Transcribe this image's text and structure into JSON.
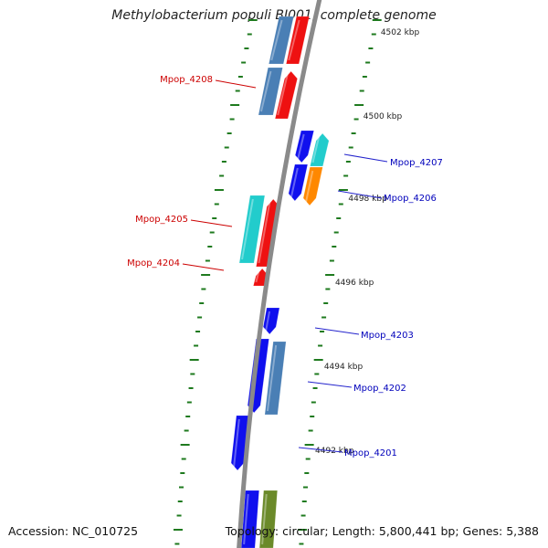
{
  "title": "Methylobacterium populi BJ001, complete genome",
  "accession_text": "Accession: NC_010725",
  "topology_text": "Topology: circular; Length: 5,800,441 bp; Genes: 5,388",
  "colors": {
    "backbone": "#8a8a8a",
    "tick": "#1e7a1e",
    "label_forward": "#cc0000",
    "label_reverse": "#0000bb",
    "leader_forward": "#cc0000",
    "leader_reverse": "#2222cc"
  },
  "ruler": [
    {
      "label": "4502 kbp",
      "kbp": 4502
    },
    {
      "label": "4500 kbp",
      "kbp": 4500
    },
    {
      "label": "4498 kbp",
      "kbp": 4498
    },
    {
      "label": "4496 kbp",
      "kbp": 4496
    },
    {
      "label": "4494 kbp",
      "kbp": 4494
    },
    {
      "label": "4492 kbp",
      "kbp": 4492
    }
  ],
  "gene_labels": [
    {
      "name": "Mpop_4208",
      "strand": "forward"
    },
    {
      "name": "Mpop_4207",
      "strand": "reverse"
    },
    {
      "name": "Mpop_4206",
      "strand": "reverse"
    },
    {
      "name": "Mpop_4205",
      "strand": "forward"
    },
    {
      "name": "Mpop_4204",
      "strand": "forward"
    },
    {
      "name": "Mpop_4203",
      "strand": "reverse"
    },
    {
      "name": "Mpop_4202",
      "strand": "reverse"
    },
    {
      "name": "Mpop_4201",
      "strand": "reverse"
    }
  ],
  "feature_colors": {
    "steelblue": "#4a7fb5",
    "red": "#ee1111",
    "blue": "#1010ee",
    "cyan": "#22cccc",
    "orange": "#ff8800",
    "olive": "#6b8a2a"
  }
}
